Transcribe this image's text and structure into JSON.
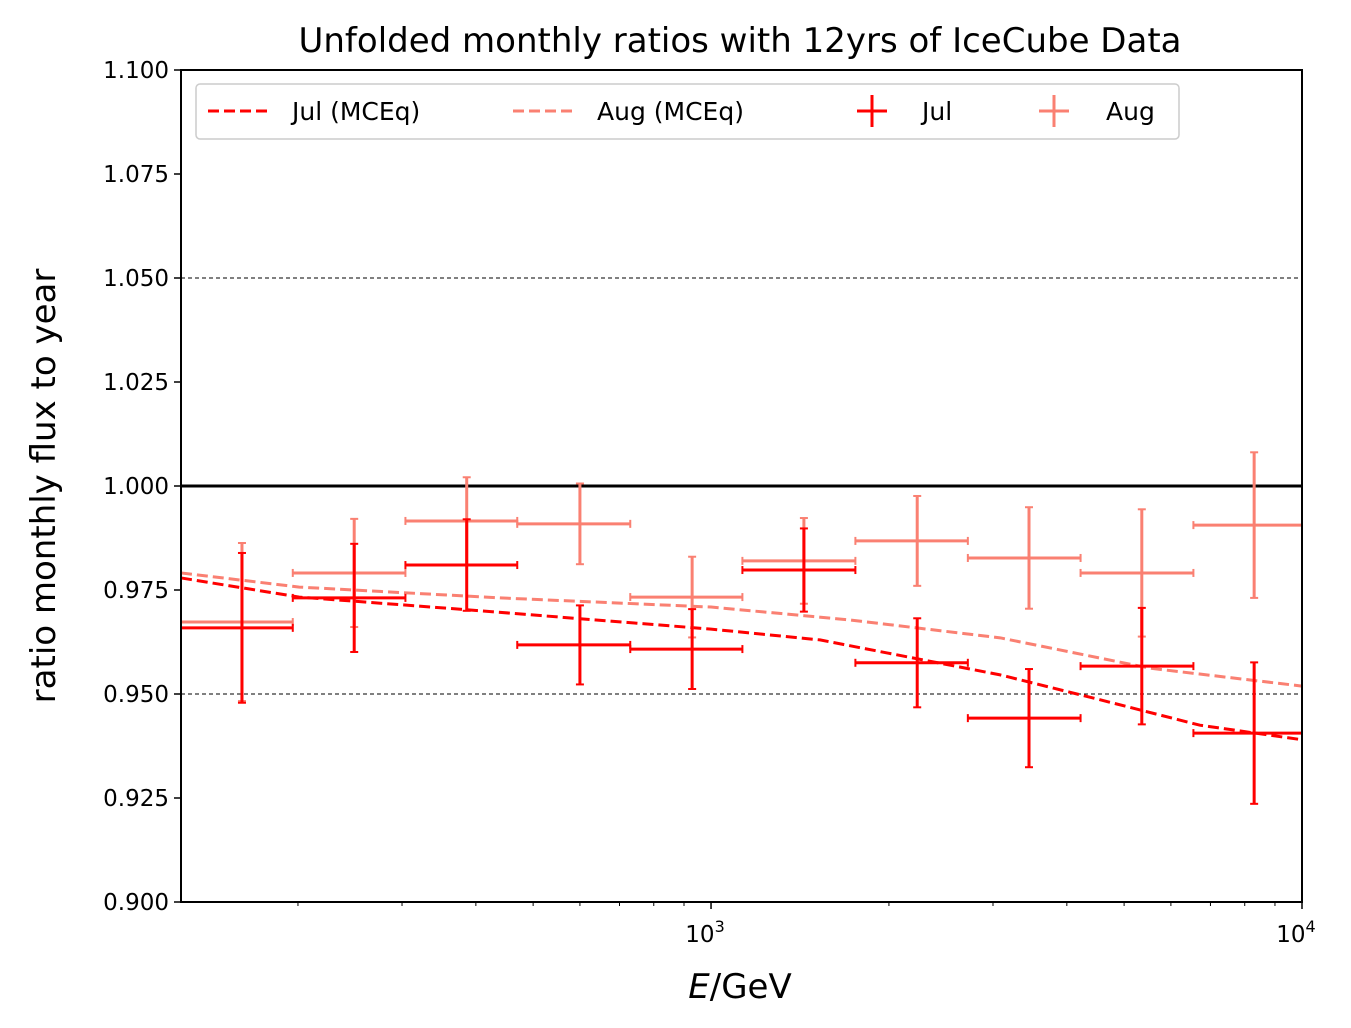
{
  "chart_data": {
    "type": "line",
    "title": "Unfolded monthly ratios with 12yrs of IceCube Data",
    "xlabel_italic": "E",
    "xlabel_rest": "/GeV",
    "ylabel": "ratio monthly flux to year",
    "xscale": "log",
    "xlim": [
      126.8,
      10000
    ],
    "ylim": [
      0.9,
      1.1
    ],
    "yticks": [
      "0.900",
      "0.925",
      "0.950",
      "0.975",
      "1.000",
      "1.025",
      "1.050",
      "1.075",
      "1.100"
    ],
    "xticks": [
      {
        "value": 1000,
        "base": "10",
        "exp": "3"
      },
      {
        "value": 10000,
        "base": "10",
        "exp": "4"
      }
    ],
    "dashed_gridlines": [
      0.95,
      1.05
    ],
    "reference_line": 1.0,
    "legend_position": "top",
    "colors": {
      "jul": "#ff0000",
      "aug": "#fa8072"
    },
    "lines": [
      {
        "name": "Jul (MCEq)",
        "color": "#ff0000",
        "x": [
          126.8,
          201,
          391,
          1000,
          1529,
          3085,
          4558,
          6718,
          10000
        ],
        "y": [
          0.9779,
          0.9733,
          0.9702,
          0.9656,
          0.963,
          0.9546,
          0.9486,
          0.9425,
          0.939
        ]
      },
      {
        "name": "Aug (MCEq)",
        "color": "#fa8072",
        "x": [
          126.8,
          201,
          440,
          1000,
          1718,
          3085,
          5532,
          10000
        ],
        "y": [
          0.9791,
          0.9757,
          0.9731,
          0.9709,
          0.9678,
          0.9635,
          0.9562,
          0.9519
        ]
      }
    ],
    "errorbar_series": [
      {
        "name": "Jul",
        "color": "#ff0000",
        "x": [
          160.8,
          249,
          386,
          600,
          929,
          1436,
          2233,
          3452,
          5357,
          8299
        ],
        "x_low": [
          126.8,
          196,
          304,
          470,
          730,
          1130,
          1755,
          2720,
          4220,
          6550
        ],
        "x_high": [
          196,
          304,
          470,
          730,
          1130,
          1755,
          2720,
          4220,
          6550,
          10000
        ],
        "y": [
          0.9659,
          0.9731,
          0.981,
          0.9618,
          0.9608,
          0.9798,
          0.9575,
          0.9442,
          0.9567,
          0.9406
        ],
        "yerr": [
          0.018,
          0.013,
          0.011,
          0.0095,
          0.0096,
          0.01,
          0.0107,
          0.0118,
          0.014,
          0.017
        ]
      },
      {
        "name": "Aug",
        "color": "#fa8072",
        "x": [
          160.8,
          249,
          386,
          600,
          929,
          1436,
          2233,
          3452,
          5357,
          8299
        ],
        "x_low": [
          126.8,
          196,
          304,
          470,
          730,
          1130,
          1755,
          2720,
          4220,
          6550
        ],
        "x_high": [
          196,
          304,
          470,
          730,
          1130,
          1755,
          2720,
          4220,
          6550,
          10000
        ],
        "y": [
          0.9673,
          0.9791,
          0.9916,
          0.9909,
          0.9733,
          0.982,
          0.9868,
          0.9827,
          0.9791,
          0.9906
        ],
        "yerr": [
          0.019,
          0.013,
          0.0105,
          0.0097,
          0.0097,
          0.0103,
          0.0108,
          0.0122,
          0.0153,
          0.0175
        ]
      }
    ]
  }
}
